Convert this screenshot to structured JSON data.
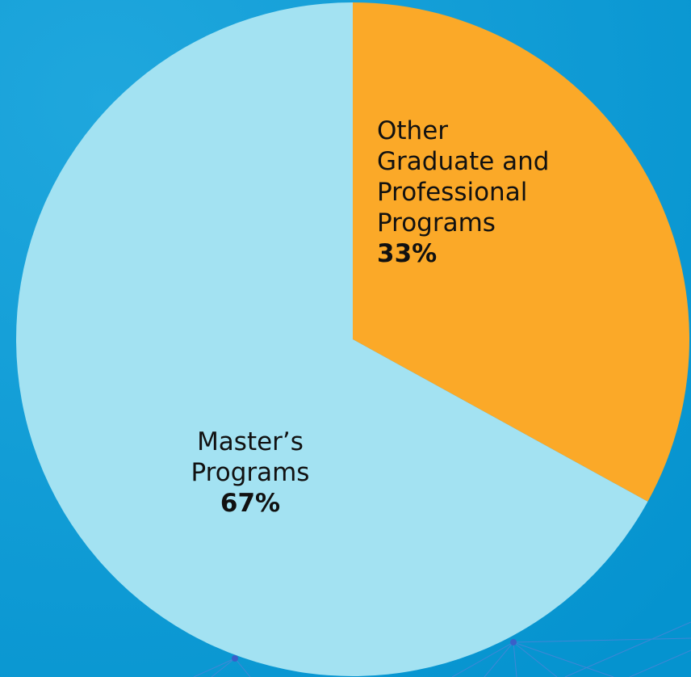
{
  "chart_data": {
    "type": "pie",
    "slices": [
      {
        "label_lines": [
          "Other",
          "Graduate and",
          "Professional",
          "Programs"
        ],
        "percent_label": "33%",
        "value": 33,
        "color": "#fba928"
      },
      {
        "label_lines": [
          "Master’s",
          "Programs"
        ],
        "percent_label": "67%",
        "value": 67,
        "color": "#a3e2f2"
      }
    ],
    "start_angle_deg": 0,
    "direction": "clockwise",
    "background_color": "#0596d2"
  }
}
